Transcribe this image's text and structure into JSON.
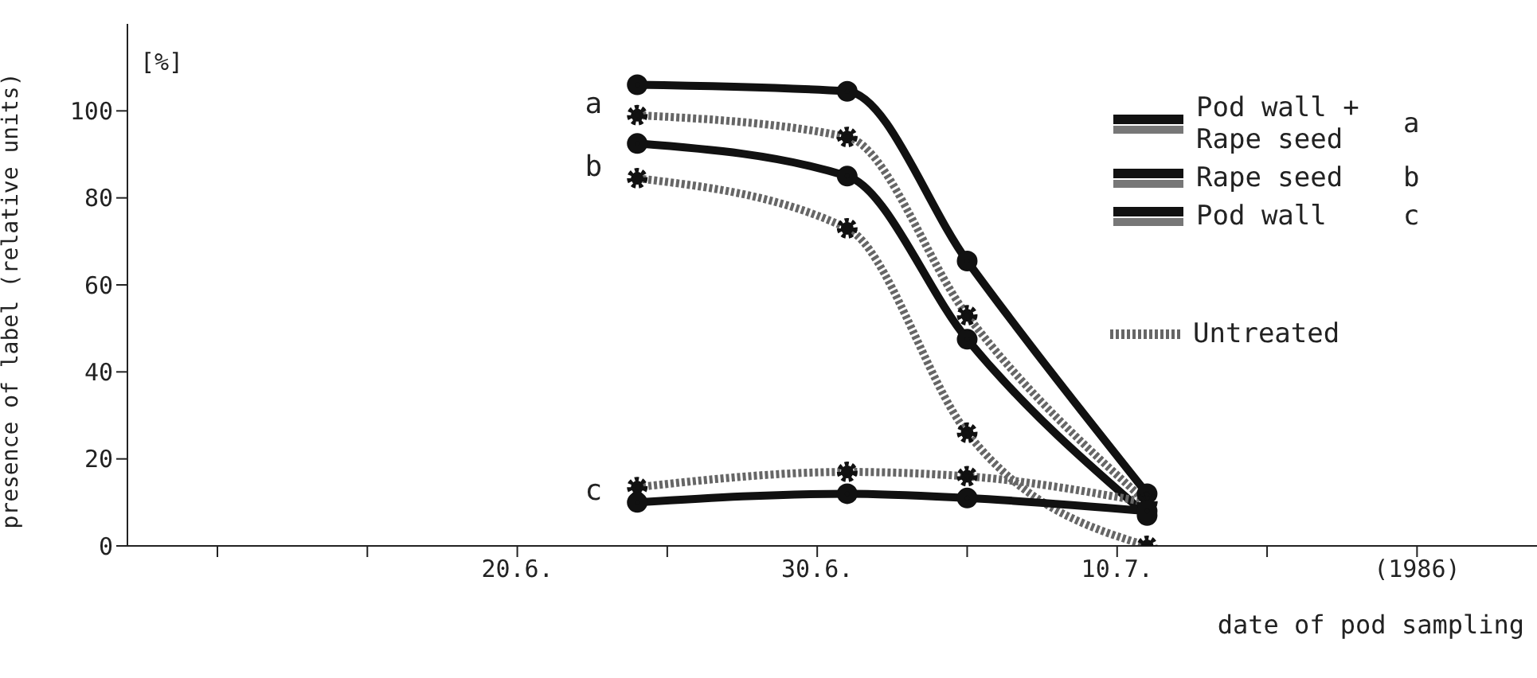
{
  "chart_data": {
    "type": "line",
    "ylabel": "presence of label  (relative units)",
    "xlabel": "date of pod sampling",
    "x": [
      "1986-06-24",
      "1986-07-01",
      "1986-07-05",
      "1986-07-11"
    ],
    "xlim": [
      "1986-06-07",
      "1986-07-24"
    ],
    "xticks": [
      {
        "value": "1986-06-10",
        "label": null
      },
      {
        "value": "1986-06-15",
        "label": null
      },
      {
        "value": "1986-06-20",
        "label": "20.6."
      },
      {
        "value": "1986-06-25",
        "label": null
      },
      {
        "value": "1986-06-30",
        "label": "30.6."
      },
      {
        "value": "1986-07-05",
        "label": null
      },
      {
        "value": "1986-07-10",
        "label": "10.7."
      },
      {
        "value": "1986-07-15",
        "label": null
      },
      {
        "value": "1986-07-20",
        "label": "(1986)"
      }
    ],
    "ylim": [
      0,
      120
    ],
    "yticks": [
      0,
      20,
      40,
      60,
      80,
      100
    ],
    "marker": "circle",
    "legend": "right",
    "series": [
      {
        "color": "#111111",
        "line_style": "solid",
        "values": [
          106,
          104.5,
          65.5,
          12
        ]
      },
      {
        "name": "Untreated",
        "color": "#666666",
        "line_style": "dashed",
        "values": [
          99,
          94,
          53,
          10
        ]
      },
      {
        "color": "#111111",
        "line_style": "solid",
        "values": [
          92.5,
          85,
          47.5,
          7
        ]
      },
      {
        "color": "#666666",
        "line_style": "dashed",
        "values": [
          84.5,
          73,
          26,
          0
        ]
      },
      {
        "color": "#666666",
        "line_style": "dashed",
        "values": [
          13.5,
          17,
          16,
          10
        ]
      },
      {
        "color": "#111111",
        "line_style": "solid",
        "values": [
          10,
          12,
          11,
          8
        ]
      }
    ],
    "annotations": [
      "[%]",
      "Pod wall + Rape seed",
      "a",
      "Rape seed",
      "b",
      "Pod wall",
      "c",
      {
        "text": "a",
        "x": "1986-06-24",
        "y": 99
      },
      {
        "text": "b",
        "x": "1986-06-24",
        "y": 84.5
      },
      {
        "text": "c",
        "x": "1986-06-24",
        "y": 10
      }
    ]
  }
}
